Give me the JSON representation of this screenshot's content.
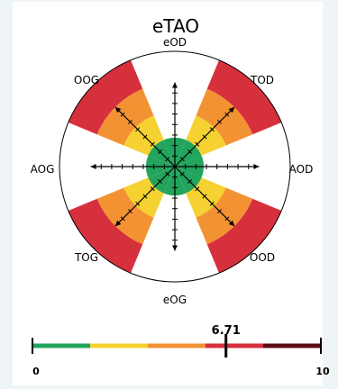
{
  "chart_data": {
    "type": "polar-sector",
    "title": "eTAO",
    "directions": [
      "eOD",
      "TOD",
      "AOD",
      "OOD",
      "eOG",
      "TOG",
      "AOG",
      "OOG"
    ],
    "direction_angles_deg": [
      0,
      45,
      90,
      135,
      180,
      225,
      270,
      315
    ],
    "bands": [
      {
        "name": "green",
        "inner": 0,
        "outer": 0.25,
        "color": "#22a45d"
      },
      {
        "name": "yellow",
        "inner": 0.25,
        "outer": 0.48,
        "color": "#f5d131"
      },
      {
        "name": "orange",
        "inner": 0.48,
        "outer": 0.73,
        "color": "#f39233"
      },
      {
        "name": "red",
        "inner": 0.73,
        "outer": 1.0,
        "color": "#d7303d"
      }
    ],
    "sectors": [
      {
        "label": "eOD",
        "angle": 0,
        "level": 0.25
      },
      {
        "label": "TOD",
        "angle": 45,
        "level": 1.0
      },
      {
        "label": "AOD",
        "angle": 90,
        "level": 0.25
      },
      {
        "label": "OOD",
        "angle": 135,
        "level": 1.0
      },
      {
        "label": "eOG",
        "angle": 180,
        "level": 0.25
      },
      {
        "label": "TOG",
        "angle": 225,
        "level": 1.0
      },
      {
        "label": "AOG",
        "angle": 270,
        "level": 0.25
      },
      {
        "label": "OOG",
        "angle": 315,
        "level": 1.0
      }
    ],
    "sector_half_width_deg": 22.5,
    "scale": {
      "min": 0,
      "max": 10,
      "value": 6.71,
      "value_label": "6.71",
      "min_label": "0",
      "max_label": "10",
      "segments": [
        {
          "from": 0,
          "to": 2,
          "color": "#22a45d"
        },
        {
          "from": 2,
          "to": 4,
          "color": "#f5d131"
        },
        {
          "from": 4,
          "to": 6,
          "color": "#f39233"
        },
        {
          "from": 6,
          "to": 8,
          "color": "#d7303d"
        },
        {
          "from": 8,
          "to": 10,
          "color": "#5a0d16"
        }
      ]
    }
  }
}
